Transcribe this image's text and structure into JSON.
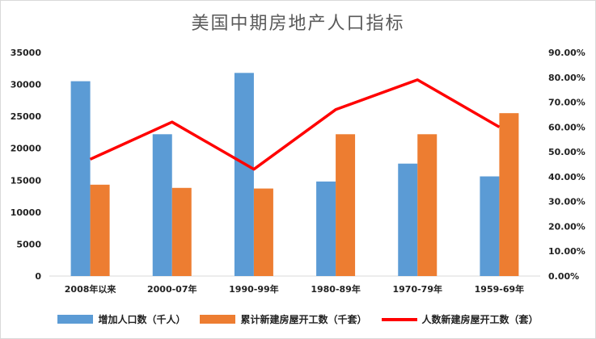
{
  "chart_data": {
    "type": "bar",
    "title": "美国中期房地产人口指标",
    "categories": [
      "2008年以来",
      "2000-07年",
      "1990-99年",
      "1980-89年",
      "1970-79年",
      "1959-69年"
    ],
    "series": [
      {
        "name": "增加人口数（千人）",
        "type": "bar",
        "axis": "left",
        "color": "#5b9bd5",
        "values": [
          30500,
          22200,
          31800,
          14800,
          17600,
          15600
        ]
      },
      {
        "name": "累计新建房屋开工数（千套）",
        "type": "bar",
        "axis": "left",
        "color": "#ed7d31",
        "values": [
          14300,
          13800,
          13700,
          22200,
          22200,
          25500
        ]
      },
      {
        "name": "人数新建房屋开工数（套）",
        "type": "line",
        "axis": "right",
        "color": "#ff0000",
        "values": [
          0.47,
          0.62,
          0.43,
          0.67,
          0.79,
          0.6
        ]
      }
    ],
    "y_left": {
      "min": 0,
      "max": 35000,
      "step": 5000,
      "ticks": [
        "0",
        "5000",
        "10000",
        "15000",
        "20000",
        "25000",
        "30000",
        "35000"
      ]
    },
    "y_right": {
      "min": 0,
      "max": 0.9,
      "step": 0.1,
      "ticks": [
        "0.00%",
        "10.00%",
        "20.00%",
        "30.00%",
        "40.00%",
        "50.00%",
        "60.00%",
        "70.00%",
        "80.00%",
        "90.00%"
      ]
    },
    "grid": false,
    "legend_position": "bottom"
  }
}
